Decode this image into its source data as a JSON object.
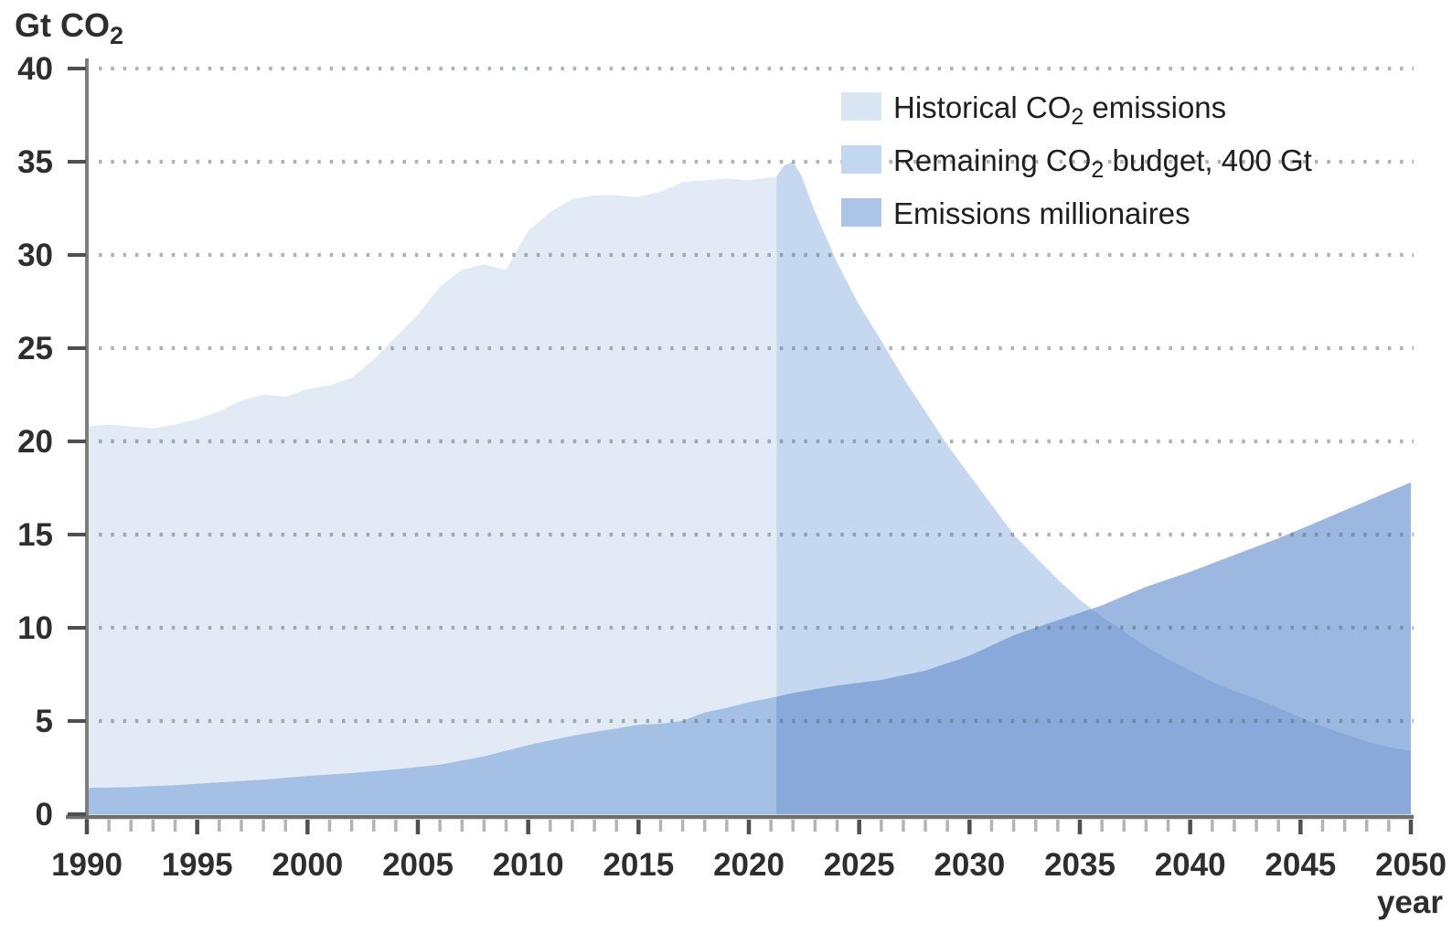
{
  "y_axis_title": {
    "pre": "Gt CO",
    "sub": "2"
  },
  "x_axis_title": "year",
  "legend": {
    "items": [
      {
        "pre": "Historical CO",
        "sub": "2",
        "post": " emissions",
        "color": "#dbe6f4"
      },
      {
        "pre": "Remaining CO",
        "sub": "2",
        "post": " budget, 400 Gt",
        "color": "#c3d7ef"
      },
      {
        "pre": "Emissions millionaires",
        "sub": "",
        "post": "",
        "color": "#abc5e7"
      }
    ]
  },
  "chart_data": {
    "type": "area",
    "title": "",
    "xlabel": "year",
    "ylabel": "Gt CO2",
    "xlim": [
      1990,
      2050
    ],
    "ylim": [
      0,
      40
    ],
    "y_ticks": [
      0,
      5,
      10,
      15,
      20,
      25,
      30,
      35,
      40
    ],
    "x_major_ticks": [
      1990,
      1995,
      2000,
      2005,
      2010,
      2015,
      2020,
      2025,
      2030,
      2035,
      2040,
      2045,
      2050
    ],
    "x_minor_tick_step": 1,
    "grid": "dotted horizontal lines at every 5 Gt, drawn over the areas",
    "legend_position": "top-right inside plot",
    "series": [
      {
        "name": "Historical CO2 emissions",
        "fill": "#e2eaf6",
        "points": [
          [
            1990,
            20.8
          ],
          [
            1991,
            20.9
          ],
          [
            1992,
            20.8
          ],
          [
            1993,
            20.7
          ],
          [
            1994,
            20.9
          ],
          [
            1995,
            21.2
          ],
          [
            1996,
            21.6
          ],
          [
            1997,
            22.2
          ],
          [
            1998,
            22.5
          ],
          [
            1999,
            22.4
          ],
          [
            2000,
            22.8
          ],
          [
            2001,
            23.0
          ],
          [
            2002,
            23.4
          ],
          [
            2003,
            24.4
          ],
          [
            2004,
            25.6
          ],
          [
            2005,
            26.8
          ],
          [
            2006,
            28.3
          ],
          [
            2007,
            29.2
          ],
          [
            2008,
            29.5
          ],
          [
            2009,
            29.2
          ],
          [
            2010,
            31.3
          ],
          [
            2011,
            32.3
          ],
          [
            2012,
            33.0
          ],
          [
            2013,
            33.2
          ],
          [
            2014,
            33.2
          ],
          [
            2015,
            33.1
          ],
          [
            2016,
            33.4
          ],
          [
            2017,
            33.9
          ],
          [
            2018,
            34.0
          ],
          [
            2019,
            34.1
          ],
          [
            2020,
            34.0
          ],
          [
            2021.25,
            34.2
          ]
        ]
      },
      {
        "name": "Remaining CO2 budget, 400 Gt",
        "fill": "#c6d8ef",
        "points": [
          [
            2021.25,
            34.2
          ],
          [
            2021.6,
            34.8
          ],
          [
            2022,
            35.0
          ],
          [
            2022.4,
            34.2
          ],
          [
            2023,
            32.3
          ],
          [
            2024,
            29.6
          ],
          [
            2025,
            27.3
          ],
          [
            2026,
            25.4
          ],
          [
            2027,
            23.4
          ],
          [
            2028,
            21.6
          ],
          [
            2029,
            19.8
          ],
          [
            2030,
            18.2
          ],
          [
            2031,
            16.6
          ],
          [
            2032,
            15.0
          ],
          [
            2033,
            13.8
          ],
          [
            2034,
            12.6
          ],
          [
            2035,
            11.5
          ],
          [
            2036,
            10.6
          ],
          [
            2037,
            9.8
          ],
          [
            2038,
            9.0
          ],
          [
            2039,
            8.3
          ],
          [
            2040,
            7.7
          ],
          [
            2041,
            7.1
          ],
          [
            2042,
            6.6
          ],
          [
            2043,
            6.2
          ],
          [
            2044,
            5.7
          ],
          [
            2045,
            5.2
          ],
          [
            2046,
            4.7
          ],
          [
            2047,
            4.3
          ],
          [
            2048,
            3.9
          ],
          [
            2049,
            3.6
          ],
          [
            2050,
            3.4
          ]
        ]
      },
      {
        "name": "Emissions millionaires",
        "fill_over_white": "#9cb8e0",
        "fill_over_historical": "#a4c0e4",
        "fill_over_budget": "#88a9d9",
        "points": [
          [
            1990,
            1.4
          ],
          [
            1992,
            1.45
          ],
          [
            1994,
            1.55
          ],
          [
            1996,
            1.7
          ],
          [
            1998,
            1.85
          ],
          [
            2000,
            2.05
          ],
          [
            2002,
            2.2
          ],
          [
            2004,
            2.4
          ],
          [
            2006,
            2.65
          ],
          [
            2008,
            3.1
          ],
          [
            2010,
            3.7
          ],
          [
            2012,
            4.2
          ],
          [
            2014,
            4.6
          ],
          [
            2015,
            4.8
          ],
          [
            2016,
            4.85
          ],
          [
            2017,
            5.0
          ],
          [
            2018,
            5.45
          ],
          [
            2019,
            5.7
          ],
          [
            2020,
            6.0
          ],
          [
            2021.25,
            6.3
          ],
          [
            2022,
            6.5
          ],
          [
            2024,
            6.9
          ],
          [
            2026,
            7.2
          ],
          [
            2028,
            7.7
          ],
          [
            2030,
            8.5
          ],
          [
            2032,
            9.6
          ],
          [
            2034,
            10.4
          ],
          [
            2036,
            11.2
          ],
          [
            2038,
            12.2
          ],
          [
            2040,
            13.0
          ],
          [
            2042,
            13.9
          ],
          [
            2044,
            14.8
          ],
          [
            2046,
            15.8
          ],
          [
            2048,
            16.8
          ],
          [
            2050,
            17.8
          ]
        ]
      }
    ],
    "annotations": {
      "historical_budget_boundary_year": 2021.25,
      "budget_peak": [
        2022,
        35.0
      ],
      "curves_cross": [
        2035.5,
        11.0
      ],
      "end_values_2050": {
        "emissions_millionaires": 17.8,
        "remaining_budget": 3.4
      }
    }
  },
  "colors": {
    "historical_area": "#e2eaf6",
    "budget_area": "#c6d8ef",
    "millionaires_over_historical": "#a4c0e4",
    "millionaires_over_budget": "#88a9d9",
    "millionaires_over_white": "#9cb8e0",
    "grid_dots": "#5f6a78",
    "x_axis_line": "#6e6e6e",
    "y_axis_line": "#7e7e7e",
    "major_tick": "#4f4f4f",
    "minor_tick": "#b4b4b4",
    "label_text": "#2e2e2e"
  }
}
